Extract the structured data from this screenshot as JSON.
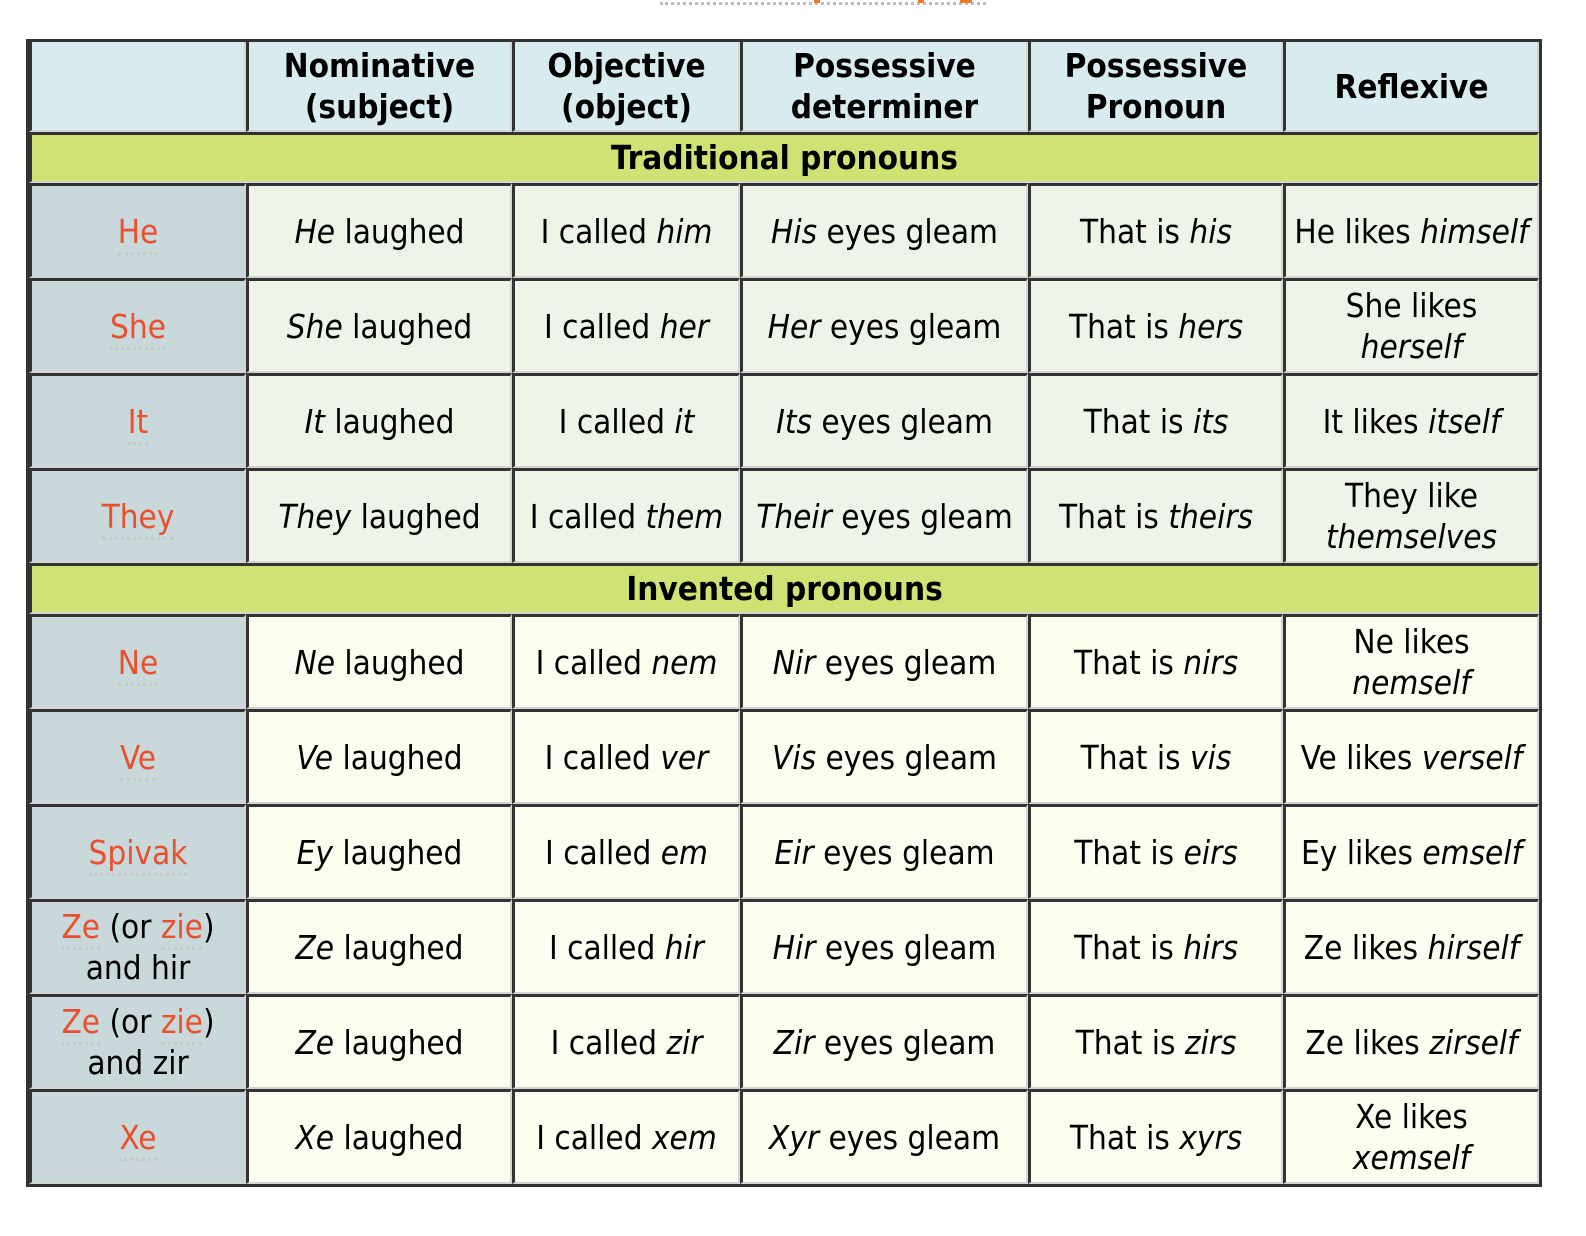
{
  "colors": {
    "header_bg": "#d8ebee",
    "section_bg": "#cfe274",
    "rowhead_bg": "#c9d9db",
    "traditional_bg": "#eef5e8",
    "invented_bg": "#fdfdef",
    "pronoun_link": "#e8502e"
  },
  "headers": [
    "",
    "Nominative (subject)",
    "Objective (object)",
    "Possessive determiner",
    "Possessive Pronoun",
    "Reflexive"
  ],
  "sections": [
    {
      "title": "Traditional pronouns",
      "kind": "trad",
      "rows": [
        {
          "label": [
            {
              "t": "He",
              "link": true
            }
          ],
          "cells": [
            [
              "",
              "He",
              " laughed"
            ],
            [
              "I called ",
              "him",
              ""
            ],
            [
              "",
              "His",
              " eyes gleam"
            ],
            [
              "That is ",
              "his",
              ""
            ],
            [
              "He likes ",
              "himself",
              ""
            ]
          ]
        },
        {
          "label": [
            {
              "t": "She",
              "link": true
            }
          ],
          "cells": [
            [
              "",
              "She",
              " laughed"
            ],
            [
              "I called ",
              "her",
              ""
            ],
            [
              "",
              "Her",
              " eyes gleam"
            ],
            [
              "That is ",
              "hers",
              ""
            ],
            [
              "She likes ",
              "herself",
              ""
            ]
          ]
        },
        {
          "label": [
            {
              "t": "It",
              "link": true
            }
          ],
          "cells": [
            [
              "",
              "It",
              " laughed"
            ],
            [
              "I called ",
              "it",
              ""
            ],
            [
              "",
              "Its",
              " eyes gleam"
            ],
            [
              "That is ",
              "its",
              ""
            ],
            [
              "It likes ",
              "itself",
              ""
            ]
          ]
        },
        {
          "label": [
            {
              "t": "They",
              "link": true
            }
          ],
          "cells": [
            [
              "",
              "They",
              " laughed"
            ],
            [
              "I called ",
              "them",
              ""
            ],
            [
              "",
              "Their",
              " eyes gleam"
            ],
            [
              "That is ",
              "theirs",
              ""
            ],
            [
              "They like ",
              "themselves",
              ""
            ]
          ]
        }
      ]
    },
    {
      "title": "Invented pronouns",
      "kind": "inv",
      "rows": [
        {
          "label": [
            {
              "t": "Ne",
              "link": true
            }
          ],
          "cells": [
            [
              "",
              "Ne",
              " laughed"
            ],
            [
              "I called ",
              "nem",
              ""
            ],
            [
              "",
              "Nir",
              " eyes gleam"
            ],
            [
              "That is ",
              "nirs",
              ""
            ],
            [
              "Ne likes ",
              "nemself",
              ""
            ]
          ]
        },
        {
          "label": [
            {
              "t": "Ve",
              "link": true
            }
          ],
          "cells": [
            [
              "",
              "Ve",
              " laughed"
            ],
            [
              "I called ",
              "ver",
              ""
            ],
            [
              "",
              "Vis",
              " eyes gleam"
            ],
            [
              "That is ",
              "vis",
              ""
            ],
            [
              "Ve likes ",
              "verself",
              ""
            ]
          ]
        },
        {
          "label": [
            {
              "t": "Spivak",
              "link": true
            }
          ],
          "cells": [
            [
              "",
              "Ey",
              " laughed"
            ],
            [
              "I called ",
              "em",
              ""
            ],
            [
              "",
              "Eir",
              " eyes gleam"
            ],
            [
              "That is ",
              "eirs",
              ""
            ],
            [
              "Ey likes ",
              "emself",
              ""
            ]
          ]
        },
        {
          "label": [
            {
              "t": "Ze",
              "link": true
            },
            {
              "t": " (or ",
              "link": false
            },
            {
              "t": "zie",
              "link": true
            },
            {
              "t": ") and hir",
              "link": false
            }
          ],
          "cells": [
            [
              "",
              "Ze",
              " laughed"
            ],
            [
              "I called ",
              "hir",
              ""
            ],
            [
              "",
              "Hir",
              " eyes gleam"
            ],
            [
              "That is ",
              "hirs",
              ""
            ],
            [
              "Ze likes ",
              "hirself",
              ""
            ]
          ]
        },
        {
          "label": [
            {
              "t": "Ze",
              "link": true
            },
            {
              "t": " (or ",
              "link": false
            },
            {
              "t": "zie",
              "link": true
            },
            {
              "t": ") and zir",
              "link": false
            }
          ],
          "cells": [
            [
              "",
              "Ze",
              " laughed"
            ],
            [
              "I called ",
              "zir",
              ""
            ],
            [
              "",
              "Zir",
              " eyes gleam"
            ],
            [
              "That is ",
              "zirs",
              ""
            ],
            [
              "Ze likes ",
              "zirself",
              ""
            ]
          ]
        },
        {
          "label": [
            {
              "t": "Xe",
              "link": true
            }
          ],
          "cells": [
            [
              "",
              "Xe",
              " laughed"
            ],
            [
              "I called ",
              "xem",
              ""
            ],
            [
              "",
              "Xyr",
              " eyes gleam"
            ],
            [
              "That is ",
              "xyrs",
              ""
            ],
            [
              "Xe likes ",
              "xemself",
              ""
            ]
          ]
        }
      ]
    }
  ]
}
